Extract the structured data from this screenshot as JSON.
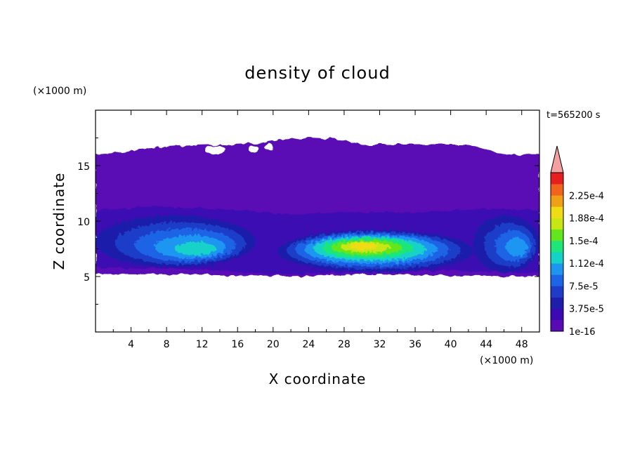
{
  "chart_data": {
    "type": "heatmap",
    "title": "density of cloud",
    "xlabel": "X coordinate",
    "ylabel": "Z coordinate",
    "x_unit": "(×1000 m)",
    "y_unit": "(×1000 m)",
    "time_label": "t=565200 s",
    "xlim": [
      0,
      50
    ],
    "ylim": [
      0,
      20
    ],
    "x_ticks": [
      4,
      8,
      12,
      16,
      20,
      24,
      28,
      32,
      36,
      40,
      44,
      48
    ],
    "y_ticks": [
      5,
      10,
      15
    ],
    "x_tick_labels": [
      "4",
      "8",
      "12",
      "16",
      "20",
      "24",
      "28",
      "32",
      "36",
      "40",
      "44",
      "48"
    ],
    "y_tick_labels": [
      "5",
      "10",
      "15"
    ],
    "colorbar": {
      "levels": [
        1e-16,
        1.875e-05,
        3.75e-05,
        5.625e-05,
        7.5e-05,
        9.375e-05,
        0.0001125,
        0.00013125,
        0.00015,
        0.00016875,
        0.0001875,
        0.00020625,
        0.000225,
        0.00024375
      ],
      "labels": [
        "1e-16",
        "3.75e-5",
        "7.5e-5",
        "1.12e-4",
        "1.5e-4",
        "1.88e-4",
        "2.25e-4"
      ],
      "colors": [
        "#5a0ab4",
        "#3c0ab4",
        "#1e1eaa",
        "#1e3cc8",
        "#1e64e6",
        "#1e96f0",
        "#14d2c8",
        "#1ee678",
        "#64e61e",
        "#c8e614",
        "#f0dc14",
        "#f0a014",
        "#f0641e",
        "#e61e1e"
      ],
      "extend_color": "#f5a0a0"
    },
    "fields": {
      "outer_envelope": {
        "value_range": [
          1e-16,
          1.875e-05
        ],
        "top": [
          [
            0,
            16.0
          ],
          [
            3,
            16.2
          ],
          [
            6,
            16.6
          ],
          [
            10,
            16.8
          ],
          [
            14,
            16.9
          ],
          [
            18,
            17.0
          ],
          [
            21,
            17.4
          ],
          [
            24,
            17.5
          ],
          [
            27,
            17.4
          ],
          [
            30,
            16.9
          ],
          [
            34,
            16.9
          ],
          [
            38,
            16.9
          ],
          [
            42,
            16.9
          ],
          [
            46,
            16.0
          ],
          [
            50,
            16.0
          ]
        ],
        "bottom": [
          [
            0,
            5.2
          ],
          [
            10,
            5.2
          ],
          [
            20,
            5.0
          ],
          [
            30,
            5.2
          ],
          [
            40,
            5.1
          ],
          [
            50,
            5.0
          ]
        ]
      },
      "holes": [
        {
          "cx": 13.5,
          "cy": 16.4,
          "rx": 1.2,
          "ry": 0.4
        },
        {
          "cx": 17.8,
          "cy": 16.5,
          "rx": 0.6,
          "ry": 0.3
        },
        {
          "cx": 19.5,
          "cy": 16.7,
          "rx": 0.5,
          "ry": 0.3
        }
      ],
      "lower_layer": {
        "value_range": [
          1.875e-05,
          3.75e-05
        ],
        "top": [
          [
            0,
            11.0
          ],
          [
            8,
            11.3
          ],
          [
            16,
            11.0
          ],
          [
            22,
            10.6
          ],
          [
            28,
            10.8
          ],
          [
            36,
            10.8
          ],
          [
            44,
            11.1
          ],
          [
            50,
            11.0
          ]
        ],
        "bottom": [
          [
            0,
            5.8
          ],
          [
            10,
            5.7
          ],
          [
            20,
            5.2
          ],
          [
            30,
            5.4
          ],
          [
            40,
            5.5
          ],
          [
            50,
            5.3
          ]
        ]
      },
      "left_cloud": {
        "value_range": [
          3.75e-05,
          0.0001125
        ],
        "peak": 0.0001125,
        "x_range": [
          0,
          18
        ],
        "z_range": [
          5.8,
          10.5
        ],
        "core": {
          "x": 12,
          "z": 7.3
        }
      },
      "central_cloud": {
        "value_range": [
          3.75e-05,
          0.0001875
        ],
        "peak": 0.0001875,
        "x_range": [
          20.5,
          42.5
        ],
        "z_range": [
          5.4,
          9.2
        ],
        "core": {
          "x": 30,
          "z": 7.8
        }
      },
      "right_cloud": {
        "value_range": [
          3.75e-05,
          9.375e-05
        ],
        "peak": 9.375e-05,
        "x_range": [
          42.5,
          50
        ],
        "z_range": [
          5.4,
          10.5
        ],
        "core": {
          "x": 48,
          "z": 7.5
        }
      }
    }
  }
}
